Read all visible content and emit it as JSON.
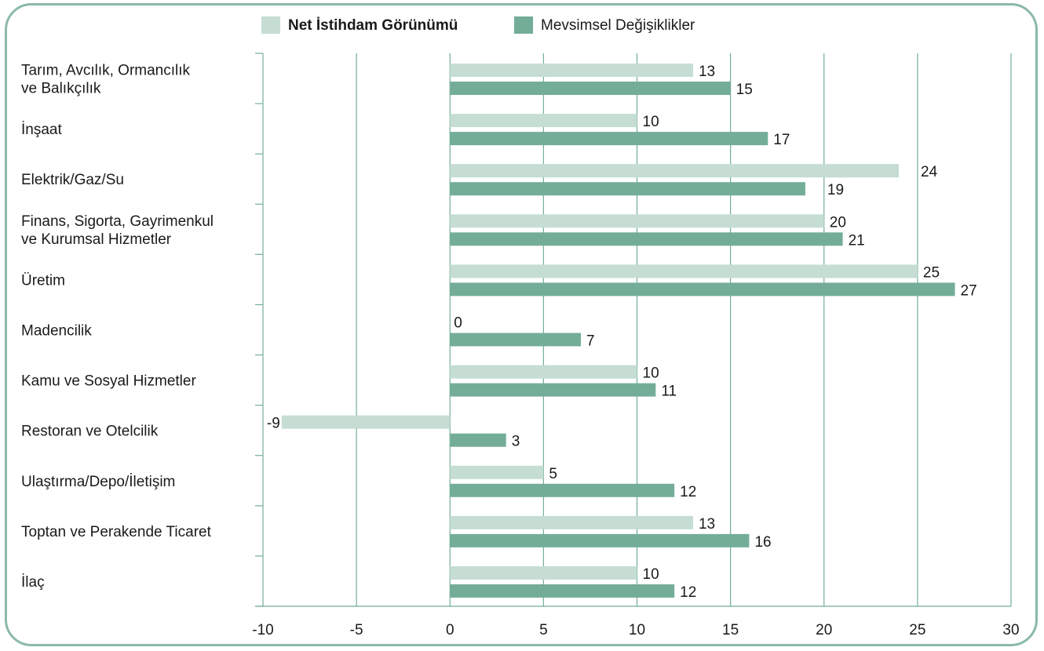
{
  "chart_data": {
    "type": "bar",
    "orientation": "horizontal",
    "categories": [
      [
        "Tarım, Avcılık, Ormancılık",
        "ve Balıkçılık"
      ],
      [
        "İnşaat"
      ],
      [
        "Elektrik/Gaz/Su"
      ],
      [
        "Finans, Sigorta, Gayrimenkul",
        "ve Kurumsal Hizmetler"
      ],
      [
        "Üretim"
      ],
      [
        "Madencilik"
      ],
      [
        "Kamu ve Sosyal Hizmetler"
      ],
      [
        "Restoran ve Otelcilik"
      ],
      [
        "Ulaştırma/Depo/İletişim"
      ],
      [
        "Toptan ve Perakende Ticaret"
      ],
      [
        "İlaç"
      ]
    ],
    "series": [
      {
        "name": "Net İstihdam Görünümü",
        "color": "#c5ddd2",
        "values": [
          13,
          10,
          24,
          20,
          25,
          0,
          10,
          -9,
          5,
          13,
          10
        ]
      },
      {
        "name": "Mevsimsel Değişiklikler",
        "color": "#74ad97",
        "values": [
          15,
          17,
          19,
          21,
          27,
          7,
          11,
          3,
          12,
          16,
          12
        ]
      }
    ],
    "xlim": [
      -10,
      30
    ],
    "xticks": [
      "-10",
      "-5",
      "0",
      "5",
      "10",
      "15",
      "20",
      "25",
      "30"
    ],
    "grid": true,
    "legend_position": "top",
    "axis_color": "#74ad97"
  }
}
